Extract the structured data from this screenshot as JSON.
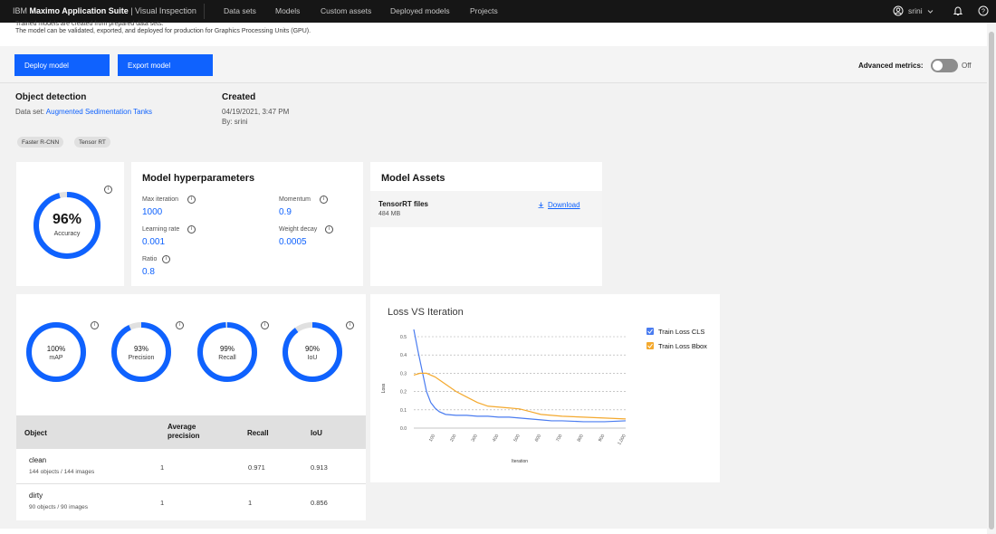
{
  "topbar": {
    "brand_prefix": "IBM ",
    "brand_bold": "Maximo Application Suite",
    "brand_suffix": " | Visual Inspection",
    "nav": [
      "Data sets",
      "Models",
      "Custom assets",
      "Deployed models",
      "Projects"
    ],
    "user": "srini"
  },
  "header": {
    "desc1": "Trained models are created from prepared data sets.",
    "desc2": "The model can be validated, exported, and deployed for production for Graphics Processing Units (GPU)."
  },
  "actions": {
    "deploy": "Deploy model",
    "export": "Export model",
    "advanced_label": "Advanced metrics:",
    "toggle_state": "Off"
  },
  "meta": {
    "type": "Object detection",
    "dataset_label": "Data set:",
    "dataset": "Augmented Sedimentation Tanks",
    "created_label": "Created",
    "created_date": "04/19/2021, 3:47 PM",
    "created_by": "By: srini",
    "tags": [
      "Faster R-CNN",
      "Tensor RT"
    ]
  },
  "accuracy": {
    "value": "96%",
    "label": "Accuracy",
    "fraction": 0.96
  },
  "hyperparameters": {
    "title": "Model hyperparameters",
    "items": [
      {
        "label": "Max iteration",
        "value": "1000"
      },
      {
        "label": "Momentum",
        "value": "0.9"
      },
      {
        "label": "Learning rate",
        "value": "0.001"
      },
      {
        "label": "Weight decay",
        "value": "0.0005"
      },
      {
        "label": "Ratio",
        "value": "0.8"
      }
    ]
  },
  "assets": {
    "title": "Model Assets",
    "file_name": "TensorRT files",
    "file_size": "484 MB",
    "download": "Download"
  },
  "metrics": [
    {
      "value": "100%",
      "label": "mAP",
      "fraction": 1.0
    },
    {
      "value": "93%",
      "label": "Precision",
      "fraction": 0.93
    },
    {
      "value": "99%",
      "label": "Recall",
      "fraction": 0.99
    },
    {
      "value": "90%",
      "label": "IoU",
      "fraction": 0.9
    }
  ],
  "table": {
    "headers": [
      "Object",
      "Average precision",
      "Recall",
      "IoU"
    ],
    "rows": [
      {
        "object": "clean",
        "sub": "144 objects / 144 images",
        "ap": "1",
        "recall": "0.971",
        "iou": "0.913"
      },
      {
        "object": "dirty",
        "sub": "90 objects / 90 images",
        "ap": "1",
        "recall": "1",
        "iou": "0.856"
      }
    ]
  },
  "chart_data": {
    "type": "line",
    "title": "Loss VS Iteration",
    "xlabel": "Iteration",
    "ylabel": "Loss",
    "ylim": [
      0,
      0.5
    ],
    "xlim": [
      0,
      1000
    ],
    "yticks": [
      "0.0",
      "0.1",
      "0.2",
      "0.3",
      "0.4",
      "0.5"
    ],
    "xticks": [
      "100",
      "200",
      "300",
      "400",
      "500",
      "600",
      "700",
      "800",
      "900",
      "1,000"
    ],
    "grid": true,
    "legend_position": "right",
    "series": [
      {
        "name": "Train Loss CLS",
        "color": "#4a7cf0",
        "x": [
          0,
          20,
          40,
          60,
          80,
          100,
          120,
          150,
          200,
          250,
          300,
          350,
          400,
          450,
          500,
          550,
          600,
          650,
          700,
          800,
          900,
          1000
        ],
        "y": [
          0.54,
          0.42,
          0.31,
          0.2,
          0.14,
          0.11,
          0.09,
          0.075,
          0.07,
          0.07,
          0.065,
          0.065,
          0.06,
          0.06,
          0.055,
          0.05,
          0.045,
          0.04,
          0.04,
          0.035,
          0.035,
          0.04
        ]
      },
      {
        "name": "Train Loss Bbox",
        "color": "#f4a92e",
        "x": [
          0,
          30,
          60,
          100,
          150,
          200,
          250,
          300,
          350,
          400,
          450,
          500,
          550,
          600,
          650,
          700,
          800,
          900,
          1000
        ],
        "y": [
          0.29,
          0.3,
          0.3,
          0.28,
          0.24,
          0.2,
          0.17,
          0.14,
          0.12,
          0.115,
          0.11,
          0.105,
          0.09,
          0.075,
          0.07,
          0.065,
          0.06,
          0.055,
          0.05
        ]
      }
    ]
  }
}
